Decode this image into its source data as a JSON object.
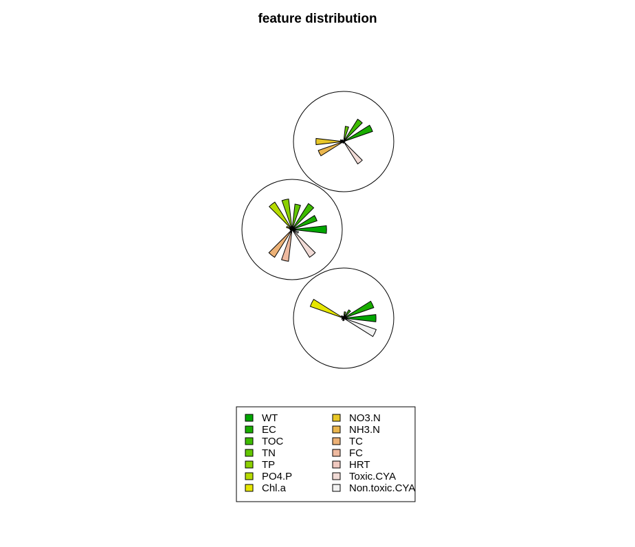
{
  "chart_data": {
    "type": "segment-star",
    "title": "feature distribution",
    "features": [
      {
        "name": "WT",
        "color": "#00A600"
      },
      {
        "name": "EC",
        "color": "#1AAD00"
      },
      {
        "name": "TOC",
        "color": "#3EBB00"
      },
      {
        "name": "TN",
        "color": "#63C600"
      },
      {
        "name": "TP",
        "color": "#8BD000"
      },
      {
        "name": "PO4.P",
        "color": "#B6DB00"
      },
      {
        "name": "Chl.a",
        "color": "#E6E600"
      },
      {
        "name": "NO3.N",
        "color": "#E8C727"
      },
      {
        "name": "NH3.N",
        "color": "#EAB64E"
      },
      {
        "name": "TC",
        "color": "#ECB176"
      },
      {
        "name": "FC",
        "color": "#EEB99F"
      },
      {
        "name": "HRT",
        "color": "#F0C9C0"
      },
      {
        "name": "Toxic.CYA",
        "color": "#F1DBD6"
      },
      {
        "name": "Non.toxic.CYA",
        "color": "#F2F2F2"
      }
    ],
    "stars": [
      {
        "values": [
          0.03,
          0.72,
          0.62,
          0.36,
          0.02,
          0.05,
          0.08,
          0.65,
          0.63,
          0.03,
          0.04,
          0.02,
          0.62,
          0.02
        ]
      },
      {
        "values": [
          0.81,
          0.62,
          0.72,
          0.6,
          0.72,
          0.76,
          0.14,
          0.05,
          0.04,
          0.77,
          0.75,
          0.02,
          0.77,
          0.16
        ]
      },
      {
        "values": [
          0.76,
          0.75,
          0.23,
          0.15,
          0.04,
          0.07,
          0.83,
          0.03,
          0.05,
          0.03,
          0.06,
          0.05,
          0.02,
          0.81
        ]
      }
    ],
    "legend": {
      "position": "bottom",
      "columns": [
        [
          "WT",
          "EC",
          "TOC",
          "TN",
          "TP",
          "PO4.P",
          "Chl.a"
        ],
        [
          "NO3.N",
          "NH3.N",
          "TC",
          "FC",
          "HRT",
          "Toxic.CYA",
          "Non.toxic.CYA"
        ]
      ]
    }
  }
}
